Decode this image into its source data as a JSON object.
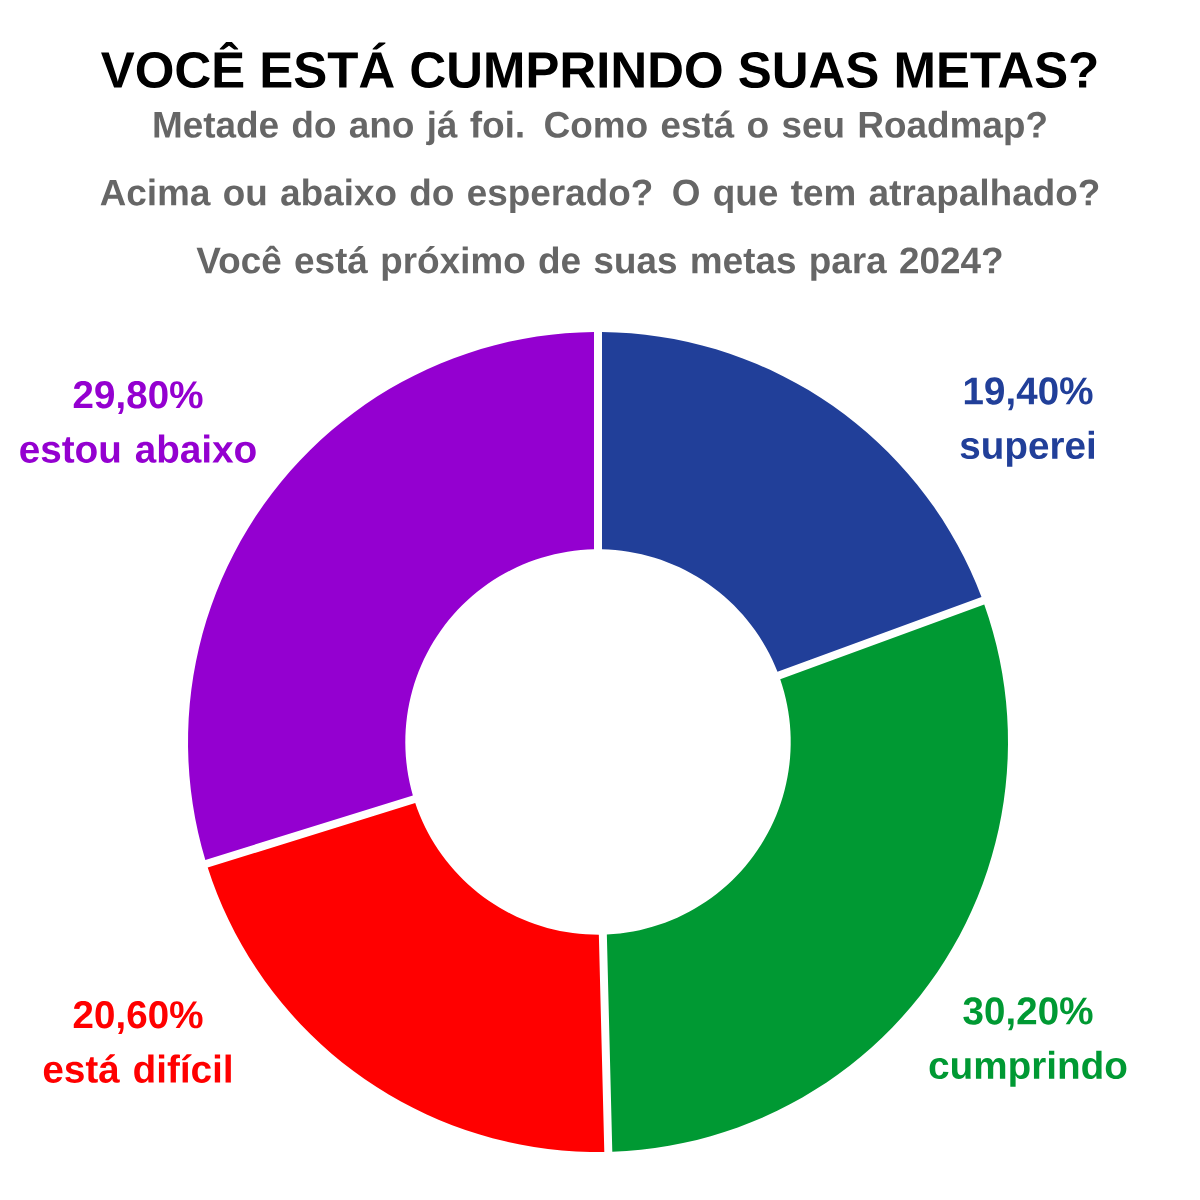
{
  "chart_data": {
    "type": "donut",
    "title": "VOCÊ ESTÁ CUMPRINDO SUAS METAS?",
    "subtitle": "Metade do ano já foi. Como está o seu Roadmap? Acima ou abaixo do esperado? O que tem atrapalhado? Você está próximo de suas metas para 2024?",
    "categories": [
      "superei",
      "cumprindo",
      "está difícil",
      "estou abaixo"
    ],
    "values": [
      19.4,
      30.2,
      20.6,
      29.8
    ],
    "value_labels": [
      "19,40%",
      "30,20%",
      "20,60%",
      "29,80%"
    ],
    "colors": [
      "#213f99",
      "#009933",
      "#ff0000",
      "#9400d0"
    ]
  }
}
